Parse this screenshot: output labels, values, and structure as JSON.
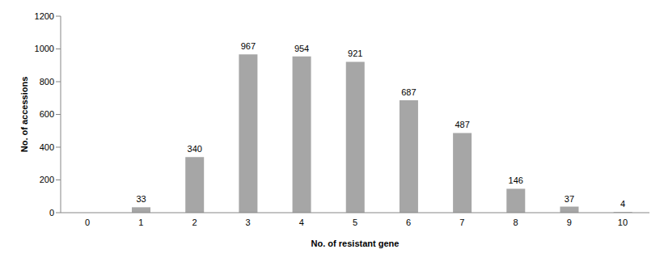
{
  "chart_data": {
    "type": "bar",
    "x_label": "No. of resistant gene",
    "y_label": "No. of accessions",
    "categories": [
      "0",
      "1",
      "2",
      "3",
      "4",
      "5",
      "6",
      "7",
      "8",
      "9",
      "10"
    ],
    "values": [
      0,
      33,
      340,
      967,
      954,
      921,
      687,
      487,
      146,
      37,
      4
    ],
    "color": "#a6a6a6",
    "ylim": [
      0,
      1200
    ],
    "yticks": [
      0,
      200,
      400,
      600,
      800,
      1000,
      1200
    ],
    "grid": false,
    "data_labels": true
  }
}
